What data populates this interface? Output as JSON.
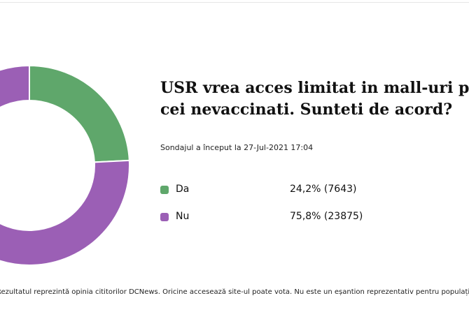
{
  "poll": {
    "title_line1": "USR vrea acces limitat in mall-uri pentru",
    "title_line2": "cei nevaccinati. Sunteti de acord?",
    "started": "Sondajul a început la 27-Jul-2021 17:04",
    "options": [
      {
        "label": "Da",
        "result": "24,2% (7643)",
        "fraction": 0.242,
        "color": "#5fa76b"
      },
      {
        "label": "Nu",
        "result": "75,8% (23875)",
        "fraction": 0.758,
        "color": "#9b5fb5"
      }
    ]
  },
  "disclaimer": "Rezultatul reprezintă opinia cititorilor DCNews. Oricine accesează site-ul poate vota. Nu este un eșantion reprezentativ pentru populația generală."
}
